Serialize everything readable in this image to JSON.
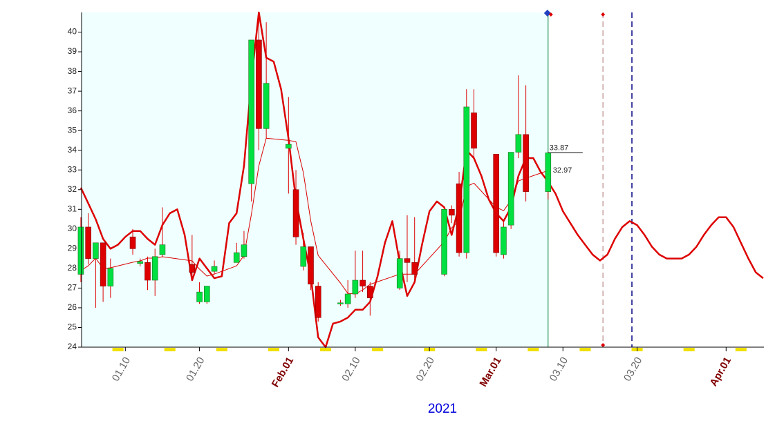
{
  "chart_data": {
    "type": "candlestick",
    "xlabel": "2021",
    "x": [
      4,
      5,
      6,
      7,
      8,
      11,
      12,
      13,
      14,
      15,
      19,
      20,
      21,
      22,
      25,
      26,
      27,
      28,
      29,
      32,
      33,
      34,
      35,
      36,
      39,
      40,
      41,
      42,
      43,
      47,
      48,
      49,
      53,
      54,
      55,
      56,
      57,
      60,
      61,
      62,
      63,
      64,
      67
    ],
    "open": [
      27.7,
      30.1,
      28.5,
      29.3,
      27.1,
      29.6,
      28.25,
      28.3,
      27.4,
      28.7,
      28.2,
      26.3,
      26.3,
      27.85,
      28.3,
      28.6,
      32.3,
      39.6,
      35.1,
      34.1,
      32.0,
      28.1,
      29.1,
      27.1,
      26.2,
      26.2,
      26.7,
      27.4,
      27.1,
      27.0,
      28.5,
      28.3,
      27.7,
      31.0,
      32.3,
      28.8,
      35.9,
      33.8,
      28.7,
      30.2,
      33.9,
      34.8,
      31.9
    ],
    "high": [
      30.6,
      30.8,
      29.3,
      29.3,
      28.5,
      30.0,
      28.5,
      28.6,
      29.0,
      31.1,
      29.7,
      27.3,
      27.1,
      28.4,
      29.3,
      29.9,
      39.6,
      41,
      40.5,
      36.7,
      33.0,
      29.8,
      29.1,
      27.3,
      26.4,
      27.4,
      28.9,
      28.9,
      27.3,
      28.9,
      30.7,
      30.6,
      31.1,
      31.2,
      32.9,
      37.1,
      37.1,
      33.8,
      30.4,
      33.9,
      37.8,
      37.3,
      33.9
    ],
    "low": [
      27.3,
      28.2,
      26.0,
      26.3,
      26.5,
      28.7,
      28.1,
      26.9,
      26.6,
      28.6,
      27.5,
      26.2,
      26.2,
      27.7,
      28.3,
      28.5,
      31.4,
      34.0,
      34.6,
      31.8,
      29.2,
      27.9,
      26.9,
      25.3,
      26.1,
      26.0,
      26.5,
      26.8,
      25.6,
      26.9,
      27.3,
      27.4,
      27.6,
      30.3,
      28.6,
      28.5,
      33.6,
      28.6,
      28.5,
      30.0,
      33.6,
      31.4,
      31.5
    ],
    "close": [
      30.1,
      28.5,
      29.3,
      27.1,
      28.0,
      29.0,
      28.35,
      27.4,
      28.6,
      29.2,
      27.8,
      26.8,
      27.1,
      28.1,
      28.8,
      29.2,
      39.6,
      35.1,
      37.4,
      34.3,
      29.6,
      29.1,
      27.2,
      25.5,
      26.25,
      26.7,
      27.4,
      27.1,
      26.5,
      28.5,
      28.3,
      27.7,
      31.0,
      30.7,
      28.8,
      36.2,
      34.1,
      28.8,
      30.1,
      33.9,
      34.8,
      31.9,
      33.87
    ],
    "up_color": "#00e040",
    "down_color": "#dd0000",
    "wick_color": "#dd0000",
    "lines": [
      {
        "color": "#dd0000",
        "width": 2.5,
        "x": [
          4,
          5,
          6,
          7,
          8,
          9,
          10,
          11,
          12,
          13,
          14,
          15,
          16,
          17,
          18,
          19,
          20,
          21,
          22,
          23,
          24,
          25,
          26,
          27,
          28,
          29,
          30,
          31,
          32,
          33,
          34,
          35,
          36,
          37,
          38,
          39,
          40,
          41,
          42,
          43,
          44,
          45,
          46,
          47,
          48,
          49,
          50,
          51,
          52,
          53,
          54,
          55,
          56,
          57,
          58,
          59,
          60,
          61,
          62,
          63,
          64,
          65,
          66,
          67,
          68,
          69,
          70,
          71,
          72,
          73,
          74,
          75,
          76,
          77,
          78,
          79,
          80,
          81,
          82,
          83,
          84,
          85,
          86,
          87,
          88,
          89,
          90,
          91,
          92,
          93,
          94,
          95,
          96
        ],
        "values": [
          32.1,
          31.3,
          30.5,
          29.5,
          29.0,
          29.2,
          29.6,
          29.9,
          29.9,
          29.5,
          29.2,
          30.2,
          30.8,
          31.0,
          29.7,
          27.4,
          28.5,
          28.0,
          27.5,
          27.6,
          30.3,
          30.8,
          33.2,
          37.6,
          41.0,
          38.7,
          38.5,
          37.1,
          34.6,
          31.5,
          29.5,
          27.6,
          24.5,
          24.0,
          25.2,
          25.3,
          25.5,
          25.9,
          25.9,
          26.3,
          27.6,
          29.3,
          30.4,
          28.3,
          26.6,
          27.3,
          29.2,
          30.9,
          31.4,
          31.1,
          29.7,
          31.2,
          34.0,
          33.6,
          32.7,
          31.5,
          30.8,
          30.4,
          31.1,
          32.7,
          33.6,
          33.6,
          32.9,
          32.4,
          31.8,
          30.9,
          30.3,
          29.7,
          29.2,
          28.7,
          28.4,
          28.7,
          29.5,
          30.1,
          30.4,
          30.2,
          29.7,
          29.1,
          28.7,
          28.5,
          28.5,
          28.5,
          28.7,
          29.1,
          29.7,
          30.2,
          30.6,
          30.6,
          30.1,
          29.3,
          28.5,
          27.8,
          27.5
        ]
      },
      {
        "color": "#dd0000",
        "width": 1,
        "values": [
          27.89,
          28.13,
          28.52,
          27.99,
          28.03,
          28.31,
          28.38,
          28.52,
          28.52,
          28.59,
          28.38,
          27.96,
          27.61,
          27.71,
          28.13,
          28.66,
          30.76,
          33.21,
          34.61,
          34.5,
          34.43,
          32.86,
          30.41,
          28.66,
          27.26,
          26.73,
          26.7,
          26.91,
          27.19,
          27.71,
          27.71,
          27.71,
          29.36,
          30.06,
          30.41,
          32.16,
          32.33,
          31.11,
          30.93,
          31.46,
          32.44,
          32.58,
          32.97
        ]
      }
    ],
    "annotations": [
      33.87,
      32.97
    ],
    "vlines": [
      {
        "x": 67,
        "color": "#008040",
        "dash": false
      },
      {
        "x": 74.4,
        "color": "#c8a0a0",
        "dash": true
      },
      {
        "x": 78.3,
        "color": "#000080",
        "dash": true
      }
    ],
    "shade_color": "#f0ffff",
    "weekend_color": "#f0e000",
    "xlim": [
      4.1,
      96.1
    ],
    "ylim": [
      24,
      41
    ],
    "xticks": [
      {
        "value": 10,
        "label": "01.10"
      },
      {
        "value": 20,
        "label": "01.20"
      },
      {
        "value": 32,
        "label": "Feb.01"
      },
      {
        "value": 41,
        "label": "02.10"
      },
      {
        "value": 51,
        "label": "02.20"
      },
      {
        "value": 60,
        "label": "Mar.01"
      },
      {
        "value": 69,
        "label": "03.10"
      },
      {
        "value": 79,
        "label": "03.20"
      },
      {
        "value": 91,
        "label": "Apr.01"
      }
    ],
    "xtick_emphasis": [
      false,
      false,
      true,
      false,
      false,
      true,
      false,
      false,
      true
    ],
    "emphasis_color": "#800000",
    "yticks": [
      24,
      25,
      26,
      27,
      28,
      29,
      30,
      31,
      32,
      33,
      34,
      35,
      36,
      37,
      38,
      39,
      40
    ]
  }
}
